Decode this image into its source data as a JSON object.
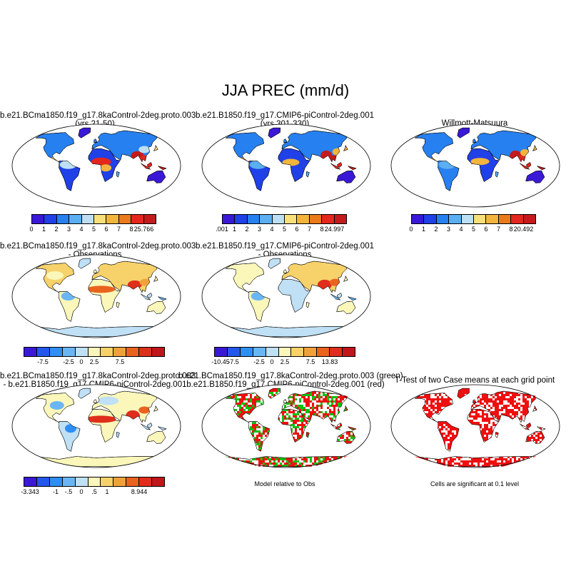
{
  "title": "JJA PREC (mm/d)",
  "colors": {
    "seq": [
      "#3a19d6",
      "#2040e8",
      "#2780f0",
      "#5aaef2",
      "#bcdff4",
      "#f7e07a",
      "#f2b43c",
      "#ea7a1a",
      "#e3261e",
      "#c31b1b"
    ],
    "div": [
      "#3a19d6",
      "#2357eb",
      "#2f8ef3",
      "#6ab6f5",
      "#bfe0f5",
      "#fbf7ba",
      "#f7d26a",
      "#f0a23a",
      "#e9631f",
      "#df2e1b",
      "#c0151b"
    ],
    "green": "#10c010",
    "red": "#ee1010"
  },
  "panels": [
    {
      "title_line1": "b.e21.BCma1850.f19_g17.8kaControl-2deg.proto.003",
      "title_line2": "(yrs 21-50)",
      "colorbar_labels": [
        "0",
        "1",
        "2",
        "3",
        "4",
        "5",
        "6",
        "7",
        "8",
        "25.766"
      ]
    },
    {
      "title_line1": "b.e21.B1850.f19_g17.CMIP6-piControl-2deg.001",
      "title_line2": "(yrs 301-330)",
      "colorbar_labels": [
        ".001",
        "1",
        "2",
        "3",
        "4",
        "5",
        "6",
        "7",
        "8",
        "24.997"
      ]
    },
    {
      "title_line1": "Willmott-Matsuura",
      "title_line2": "",
      "colorbar_labels": [
        "0",
        "1",
        "2",
        "3",
        "4",
        "5",
        "6",
        "7",
        "8",
        "20.492"
      ]
    },
    {
      "title_line1": "b.e21.BCma1850.f19_g17.8kaControl-2deg.proto.003",
      "title_line2": "- Observations",
      "colorbar_labels": [
        "-7.5",
        "-2.5",
        "0",
        "2.5",
        "7.5"
      ]
    },
    {
      "title_line1": "b.e21.B1850.f19_g17.CMIP6-piControl-2deg.001",
      "title_line2": "- Observations",
      "colorbar_labels": [
        "-10.45",
        "-7.5",
        "-2.5",
        "0",
        "2.5",
        "7.5",
        "13.83"
      ]
    },
    {
      "title_line1": "b.e21.BCma1850.f19_g17.8kaControl-2deg.proto.003",
      "title_line2": "- b.e21.B1850.f19_g17.CMIP6-piControl-2deg.001",
      "colorbar_labels": [
        "-3.343",
        "-1",
        "-.5",
        "0",
        ".5",
        "1",
        "8.944"
      ]
    },
    {
      "title_line1": "b.e21.BCma1850.f19_g17.8kaControl-2deg.proto.003 (green)",
      "title_line2": "b.e21.B1850.f19_g17.CMIP6-piControl-2deg.001 (red)",
      "note": "Model relative to Obs"
    },
    {
      "title_line1": "T-Test of two Case means at each grid point",
      "title_line2": "",
      "note": "Cells are significant at 0.1 level"
    }
  ]
}
